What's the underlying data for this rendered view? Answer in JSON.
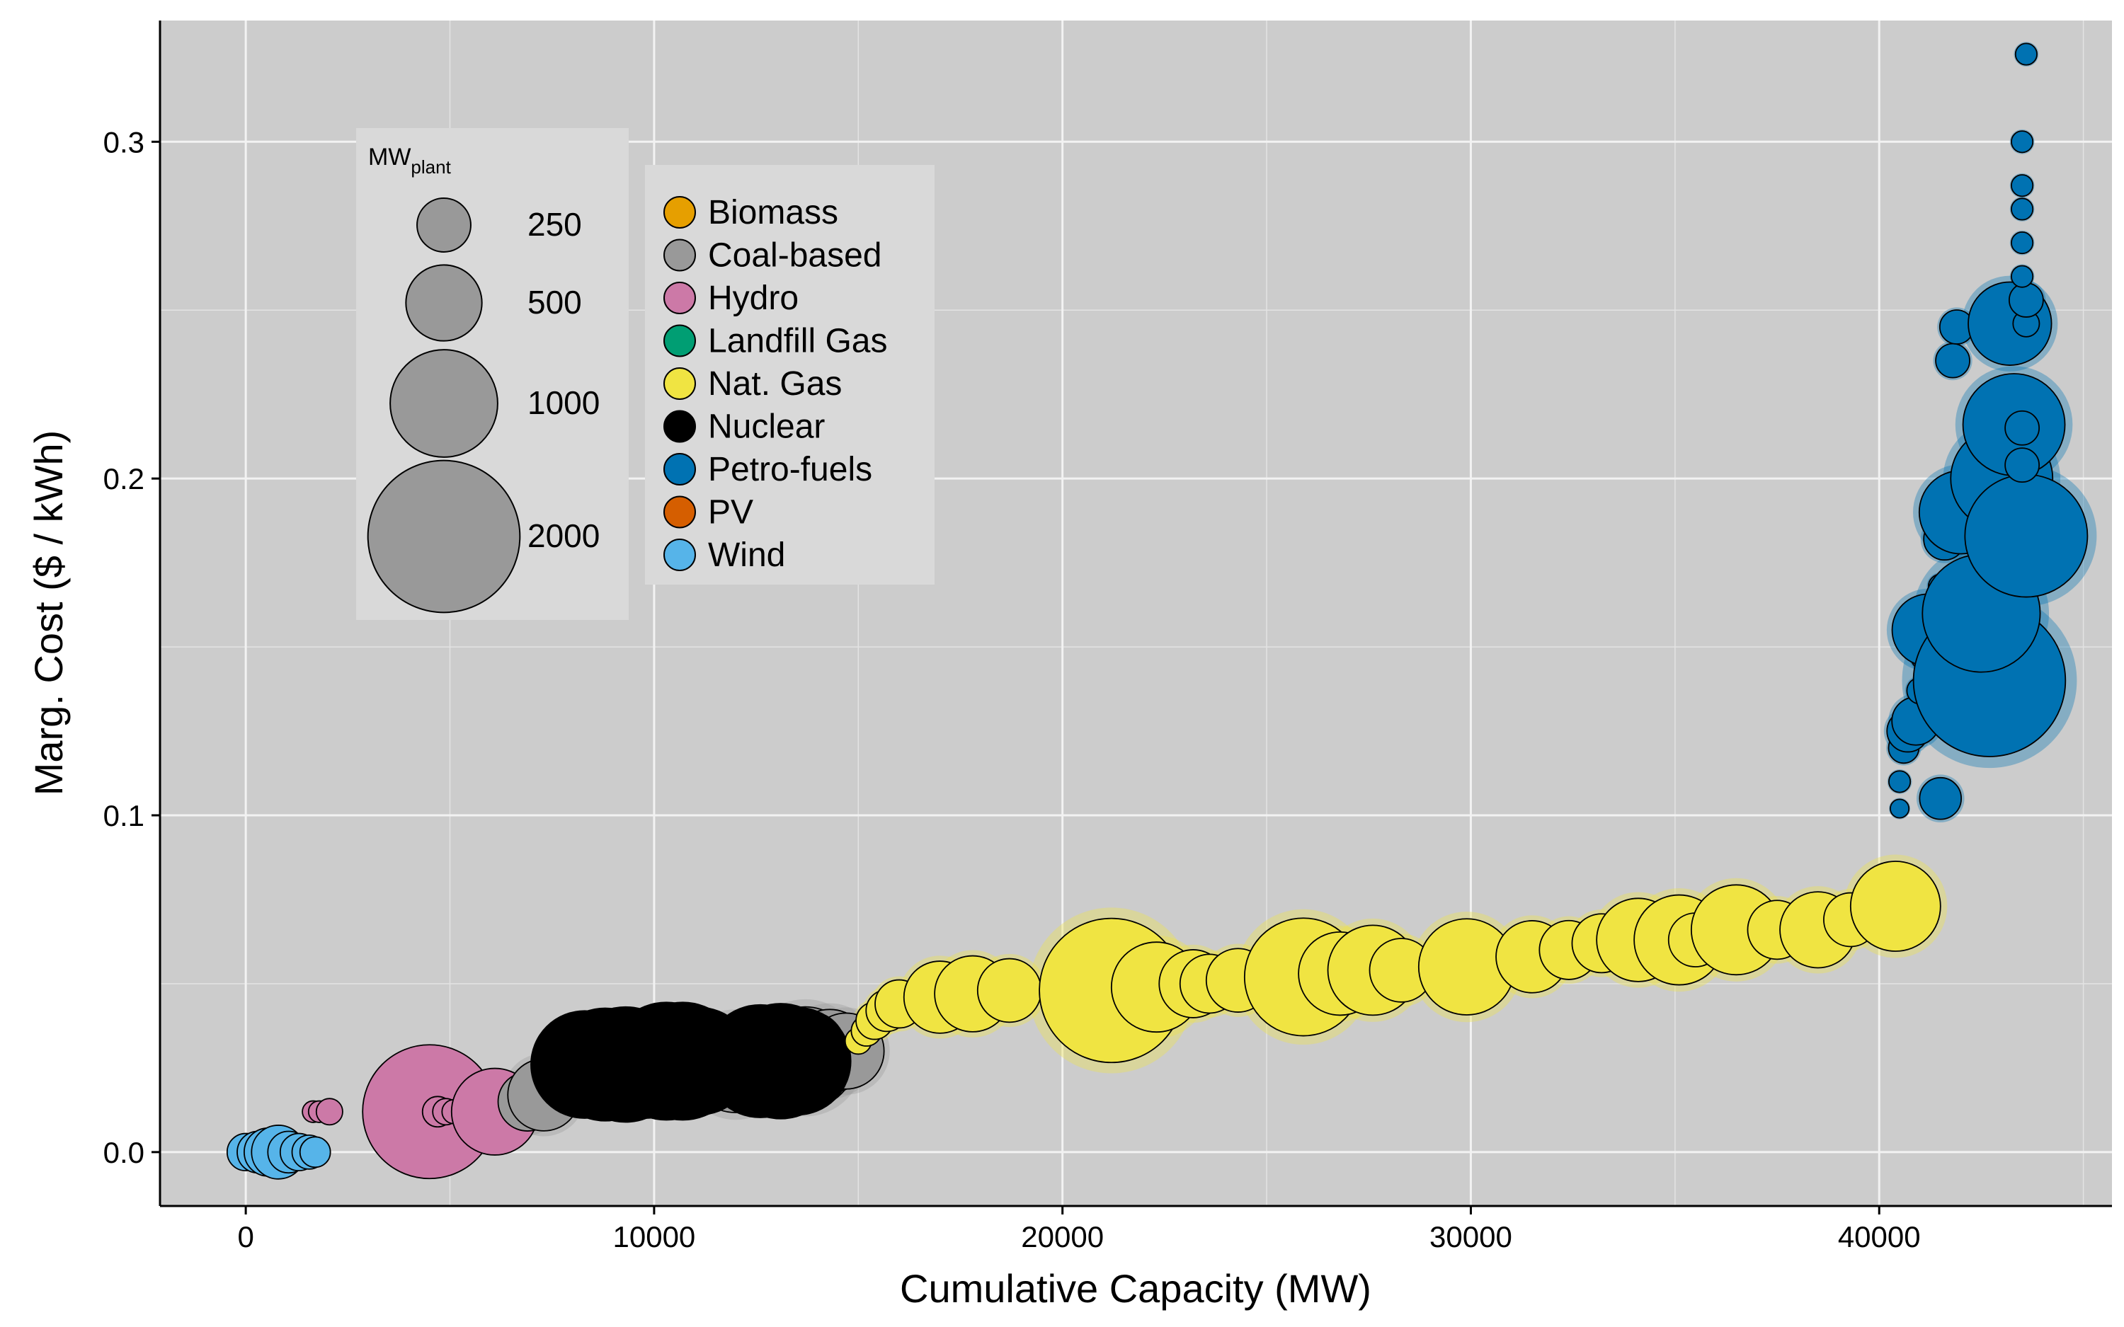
{
  "chart_data": {
    "type": "scatter",
    "xlabel": "Cumulative Capacity (MW)",
    "ylabel": "Marg. Cost ($ / kWh)",
    "xlim": [
      -2100,
      45700
    ],
    "ylim": [
      -0.016,
      0.336
    ],
    "x_ticks": [
      0,
      10000,
      20000,
      30000,
      40000
    ],
    "x_tick_labels": [
      "0",
      "10000",
      "20000",
      "30000",
      "40000"
    ],
    "y_ticks": [
      0.0,
      0.1,
      0.2,
      0.3
    ],
    "y_tick_labels": [
      "0.0",
      "0.1",
      "0.2",
      "0.3"
    ],
    "grid": true,
    "background": "#cccccc",
    "size_legend": {
      "title_main": "MW",
      "title_sub": "plant",
      "entries": [
        {
          "label": "250",
          "value": 250
        },
        {
          "label": "500",
          "value": 500
        },
        {
          "label": "1000",
          "value": 1000
        },
        {
          "label": "2000",
          "value": 2000
        }
      ]
    },
    "legend": [
      {
        "name": "Biomass",
        "color": "#E69F00"
      },
      {
        "name": "Coal-based",
        "color": "#999999"
      },
      {
        "name": "Hydro",
        "color": "#CC79A7"
      },
      {
        "name": "Landfill Gas",
        "color": "#009E73"
      },
      {
        "name": "Nat. Gas",
        "color": "#F0E442"
      },
      {
        "name": "Nuclear",
        "color": "#000000"
      },
      {
        "name": "Petro-fuels",
        "color": "#0072B2"
      },
      {
        "name": "PV",
        "color": "#D55E00"
      },
      {
        "name": "Wind",
        "color": "#56B4E9"
      }
    ],
    "series": [
      {
        "name": "Wind",
        "points": [
          {
            "x": 0,
            "y": 0.0,
            "mw": 120
          },
          {
            "x": 300,
            "y": 0.0,
            "mw": 150
          },
          {
            "x": 550,
            "y": 0.0,
            "mw": 200
          },
          {
            "x": 800,
            "y": 0.0,
            "mw": 250
          },
          {
            "x": 1050,
            "y": 0.0,
            "mw": 150
          },
          {
            "x": 1300,
            "y": 0.0,
            "mw": 120
          },
          {
            "x": 1550,
            "y": 0.0,
            "mw": 100
          },
          {
            "x": 1700,
            "y": 0.0,
            "mw": 80
          }
        ]
      },
      {
        "name": "Hydro",
        "points": [
          {
            "x": 1650,
            "y": 0.012,
            "mw": 40
          },
          {
            "x": 1800,
            "y": 0.012,
            "mw": 40
          },
          {
            "x": 2050,
            "y": 0.012,
            "mw": 60
          },
          {
            "x": 4500,
            "y": 0.012,
            "mw": 1550
          },
          {
            "x": 4700,
            "y": 0.012,
            "mw": 80
          },
          {
            "x": 4900,
            "y": 0.012,
            "mw": 60
          },
          {
            "x": 5100,
            "y": 0.012,
            "mw": 50
          },
          {
            "x": 6100,
            "y": 0.012,
            "mw": 650
          }
        ]
      },
      {
        "name": "Coal-based",
        "points": [
          {
            "x": 6900,
            "y": 0.015,
            "mw": 300
          },
          {
            "x": 7300,
            "y": 0.017,
            "mw": 450
          },
          {
            "x": 12000,
            "y": 0.026,
            "mw": 800
          },
          {
            "x": 13700,
            "y": 0.028,
            "mw": 900
          },
          {
            "x": 14300,
            "y": 0.03,
            "mw": 600
          },
          {
            "x": 14700,
            "y": 0.03,
            "mw": 500
          },
          {
            "x": 13800,
            "y": 0.031,
            "mw": 450
          }
        ]
      },
      {
        "name": "Nuclear",
        "points": [
          {
            "x": 8300,
            "y": 0.026,
            "mw": 1000
          },
          {
            "x": 8800,
            "y": 0.026,
            "mw": 1100
          },
          {
            "x": 9300,
            "y": 0.026,
            "mw": 1150
          },
          {
            "x": 9800,
            "y": 0.026,
            "mw": 1000
          },
          {
            "x": 10300,
            "y": 0.027,
            "mw": 1200
          },
          {
            "x": 10700,
            "y": 0.027,
            "mw": 1200
          },
          {
            "x": 11100,
            "y": 0.027,
            "mw": 1000
          },
          {
            "x": 12600,
            "y": 0.027,
            "mw": 1100
          },
          {
            "x": 13100,
            "y": 0.027,
            "mw": 1150
          },
          {
            "x": 13500,
            "y": 0.027,
            "mw": 1000
          }
        ]
      },
      {
        "name": "Nat. Gas",
        "points": [
          {
            "x": 15000,
            "y": 0.033,
            "mw": 60
          },
          {
            "x": 15200,
            "y": 0.036,
            "mw": 80
          },
          {
            "x": 15400,
            "y": 0.039,
            "mw": 120
          },
          {
            "x": 15700,
            "y": 0.042,
            "mw": 150
          },
          {
            "x": 16000,
            "y": 0.044,
            "mw": 200
          },
          {
            "x": 17000,
            "y": 0.046,
            "mw": 450
          },
          {
            "x": 17800,
            "y": 0.047,
            "mw": 500
          },
          {
            "x": 18700,
            "y": 0.048,
            "mw": 350
          },
          {
            "x": 21200,
            "y": 0.048,
            "mw": 1800
          },
          {
            "x": 22300,
            "y": 0.049,
            "mw": 700
          },
          {
            "x": 23200,
            "y": 0.05,
            "mw": 400
          },
          {
            "x": 23600,
            "y": 0.05,
            "mw": 300
          },
          {
            "x": 24300,
            "y": 0.051,
            "mw": 350
          },
          {
            "x": 25900,
            "y": 0.052,
            "mw": 1200
          },
          {
            "x": 26800,
            "y": 0.053,
            "mw": 600
          },
          {
            "x": 27600,
            "y": 0.054,
            "mw": 700
          },
          {
            "x": 28300,
            "y": 0.054,
            "mw": 350
          },
          {
            "x": 29900,
            "y": 0.055,
            "mw": 800
          },
          {
            "x": 31500,
            "y": 0.058,
            "mw": 450
          },
          {
            "x": 32400,
            "y": 0.06,
            "mw": 300
          },
          {
            "x": 33200,
            "y": 0.062,
            "mw": 300
          },
          {
            "x": 34100,
            "y": 0.063,
            "mw": 600
          },
          {
            "x": 35100,
            "y": 0.063,
            "mw": 700
          },
          {
            "x": 35500,
            "y": 0.063,
            "mw": 250
          },
          {
            "x": 36500,
            "y": 0.066,
            "mw": 700
          },
          {
            "x": 37500,
            "y": 0.066,
            "mw": 300
          },
          {
            "x": 38500,
            "y": 0.066,
            "mw": 500
          },
          {
            "x": 39300,
            "y": 0.069,
            "mw": 250
          },
          {
            "x": 40400,
            "y": 0.073,
            "mw": 700
          }
        ]
      },
      {
        "name": "Petro-fuels",
        "points": [
          {
            "x": 40500,
            "y": 0.102,
            "mw": 30
          },
          {
            "x": 40500,
            "y": 0.11,
            "mw": 40
          },
          {
            "x": 40600,
            "y": 0.12,
            "mw": 80
          },
          {
            "x": 40700,
            "y": 0.125,
            "mw": 150
          },
          {
            "x": 40900,
            "y": 0.128,
            "mw": 200
          },
          {
            "x": 41000,
            "y": 0.137,
            "mw": 60
          },
          {
            "x": 41100,
            "y": 0.147,
            "mw": 60
          },
          {
            "x": 41200,
            "y": 0.155,
            "mw": 450
          },
          {
            "x": 41500,
            "y": 0.162,
            "mw": 50
          },
          {
            "x": 41500,
            "y": 0.168,
            "mw": 50
          },
          {
            "x": 41600,
            "y": 0.182,
            "mw": 150
          },
          {
            "x": 41500,
            "y": 0.105,
            "mw": 150
          },
          {
            "x": 42700,
            "y": 0.14,
            "mw": 2000
          },
          {
            "x": 42500,
            "y": 0.16,
            "mw": 1200
          },
          {
            "x": 42000,
            "y": 0.19,
            "mw": 600
          },
          {
            "x": 41800,
            "y": 0.235,
            "mw": 100
          },
          {
            "x": 41900,
            "y": 0.245,
            "mw": 100
          },
          {
            "x": 43000,
            "y": 0.2,
            "mw": 900
          },
          {
            "x": 43300,
            "y": 0.216,
            "mw": 900
          },
          {
            "x": 43200,
            "y": 0.246,
            "mw": 600
          },
          {
            "x": 43600,
            "y": 0.183,
            "mw": 1300
          },
          {
            "x": 43500,
            "y": 0.204,
            "mw": 100
          },
          {
            "x": 43500,
            "y": 0.215,
            "mw": 100
          },
          {
            "x": 43600,
            "y": 0.246,
            "mw": 60
          },
          {
            "x": 43600,
            "y": 0.253,
            "mw": 100
          },
          {
            "x": 43500,
            "y": 0.26,
            "mw": 40
          },
          {
            "x": 43500,
            "y": 0.27,
            "mw": 40
          },
          {
            "x": 43500,
            "y": 0.28,
            "mw": 40
          },
          {
            "x": 43500,
            "y": 0.287,
            "mw": 40
          },
          {
            "x": 43500,
            "y": 0.3,
            "mw": 40
          },
          {
            "x": 43600,
            "y": 0.326,
            "mw": 40
          }
        ]
      }
    ]
  }
}
